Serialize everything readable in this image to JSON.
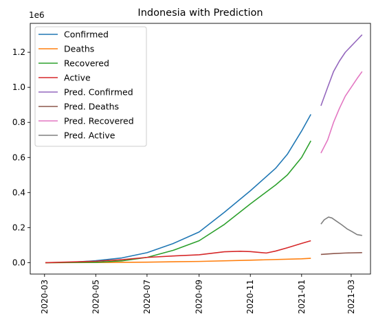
{
  "chart_data": {
    "type": "line",
    "title": "Indonesia with Prediction",
    "xlabel": "",
    "ylabel": "",
    "y_offset_label": "1e6",
    "xlim": [
      "2020-02-13",
      "2021-03-24"
    ],
    "ylim": [
      -0.065,
      1.365
    ],
    "x_ticks": [
      "2020-03",
      "2020-05",
      "2020-07",
      "2020-09",
      "2020-11",
      "2021-01",
      "2021-03"
    ],
    "y_ticks": [
      "0.0",
      "0.2",
      "0.4",
      "0.6",
      "0.8",
      "1.0",
      "1.2"
    ],
    "y_tick_values": [
      0.0,
      0.2,
      0.4,
      0.6,
      0.8,
      1.0,
      1.2
    ],
    "grid": false,
    "legend_position": "top-left",
    "series": [
      {
        "name": "Confirmed",
        "color": "#1f77b4",
        "points": [
          [
            "2020-03-02",
            0.0
          ],
          [
            "2020-04-01",
            0.002
          ],
          [
            "2020-05-01",
            0.011
          ],
          [
            "2020-06-01",
            0.027
          ],
          [
            "2020-07-01",
            0.057
          ],
          [
            "2020-08-01",
            0.109
          ],
          [
            "2020-09-01",
            0.175
          ],
          [
            "2020-10-01",
            0.287
          ],
          [
            "2020-11-01",
            0.41
          ],
          [
            "2020-12-01",
            0.538
          ],
          [
            "2020-12-15",
            0.618
          ],
          [
            "2021-01-01",
            0.751
          ],
          [
            "2021-01-12",
            0.846
          ]
        ]
      },
      {
        "name": "Deaths",
        "color": "#ff7f0e",
        "points": [
          [
            "2020-03-02",
            0.0
          ],
          [
            "2020-05-01",
            0.001
          ],
          [
            "2020-07-01",
            0.003
          ],
          [
            "2020-09-01",
            0.007
          ],
          [
            "2020-11-01",
            0.014
          ],
          [
            "2021-01-01",
            0.022
          ],
          [
            "2021-01-12",
            0.025
          ]
        ]
      },
      {
        "name": "Recovered",
        "color": "#2ca02c",
        "points": [
          [
            "2020-03-02",
            0.0
          ],
          [
            "2020-05-01",
            0.002
          ],
          [
            "2020-06-01",
            0.01
          ],
          [
            "2020-07-01",
            0.03
          ],
          [
            "2020-08-01",
            0.07
          ],
          [
            "2020-09-01",
            0.125
          ],
          [
            "2020-10-01",
            0.218
          ],
          [
            "2020-11-01",
            0.335
          ],
          [
            "2020-12-01",
            0.443
          ],
          [
            "2020-12-15",
            0.5
          ],
          [
            "2021-01-01",
            0.6
          ],
          [
            "2021-01-12",
            0.695
          ]
        ]
      },
      {
        "name": "Active",
        "color": "#d62728",
        "points": [
          [
            "2020-03-02",
            0.0
          ],
          [
            "2020-05-01",
            0.008
          ],
          [
            "2020-06-01",
            0.017
          ],
          [
            "2020-07-01",
            0.03
          ],
          [
            "2020-08-01",
            0.038
          ],
          [
            "2020-09-01",
            0.045
          ],
          [
            "2020-10-01",
            0.062
          ],
          [
            "2020-10-20",
            0.065
          ],
          [
            "2020-11-01",
            0.063
          ],
          [
            "2020-11-20",
            0.055
          ],
          [
            "2020-12-01",
            0.066
          ],
          [
            "2020-12-15",
            0.085
          ],
          [
            "2021-01-01",
            0.11
          ],
          [
            "2021-01-12",
            0.125
          ]
        ]
      },
      {
        "name": "Pred. Confirmed",
        "color": "#9467bd",
        "points": [
          [
            "2021-01-24",
            0.895
          ],
          [
            "2021-02-01",
            1.0
          ],
          [
            "2021-02-08",
            1.09
          ],
          [
            "2021-02-15",
            1.15
          ],
          [
            "2021-02-22",
            1.2
          ],
          [
            "2021-03-01",
            1.235
          ],
          [
            "2021-03-08",
            1.27
          ],
          [
            "2021-03-14",
            1.3
          ]
        ]
      },
      {
        "name": "Pred. Deaths",
        "color": "#8c564b",
        "points": [
          [
            "2021-01-24",
            0.047
          ],
          [
            "2021-02-08",
            0.052
          ],
          [
            "2021-02-22",
            0.055
          ],
          [
            "2021-03-14",
            0.057
          ]
        ]
      },
      {
        "name": "Pred. Recovered",
        "color": "#e377c2",
        "points": [
          [
            "2021-01-24",
            0.625
          ],
          [
            "2021-02-01",
            0.7
          ],
          [
            "2021-02-08",
            0.8
          ],
          [
            "2021-02-15",
            0.88
          ],
          [
            "2021-02-22",
            0.95
          ],
          [
            "2021-03-01",
            1.0
          ],
          [
            "2021-03-08",
            1.05
          ],
          [
            "2021-03-14",
            1.09
          ]
        ]
      },
      {
        "name": "Pred. Active",
        "color": "#7f7f7f",
        "points": [
          [
            "2021-01-24",
            0.22
          ],
          [
            "2021-01-28",
            0.245
          ],
          [
            "2021-02-02",
            0.26
          ],
          [
            "2021-02-06",
            0.255
          ],
          [
            "2021-02-12",
            0.235
          ],
          [
            "2021-02-18",
            0.215
          ],
          [
            "2021-02-24",
            0.193
          ],
          [
            "2021-03-02",
            0.177
          ],
          [
            "2021-03-08",
            0.16
          ],
          [
            "2021-03-14",
            0.155
          ]
        ]
      }
    ]
  }
}
